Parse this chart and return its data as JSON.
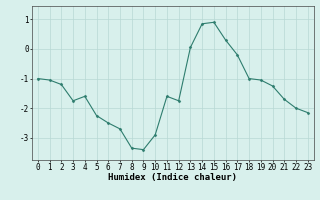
{
  "x": [
    0,
    1,
    2,
    3,
    4,
    5,
    6,
    7,
    8,
    9,
    10,
    11,
    12,
    13,
    14,
    15,
    16,
    17,
    18,
    19,
    20,
    21,
    22,
    23
  ],
  "y": [
    -1.0,
    -1.05,
    -1.2,
    -1.75,
    -1.6,
    -2.25,
    -2.5,
    -2.7,
    -3.35,
    -3.4,
    -2.9,
    -1.6,
    -1.75,
    0.05,
    0.85,
    0.9,
    0.3,
    -0.2,
    -1.0,
    -1.05,
    -1.25,
    -1.7,
    -2.0,
    -2.15
  ],
  "line_color": "#2e7d6e",
  "marker": "D",
  "marker_size": 1.5,
  "line_width": 0.8,
  "bg_color": "#d8f0ec",
  "grid_color": "#b8d8d4",
  "xlabel": "Humidex (Indice chaleur)",
  "xlabel_fontsize": 6.5,
  "tick_fontsize": 5.5,
  "ylim": [
    -3.75,
    1.45
  ],
  "xlim": [
    -0.5,
    23.5
  ],
  "yticks": [
    -3,
    -2,
    -1,
    0,
    1
  ],
  "xticks": [
    0,
    1,
    2,
    3,
    4,
    5,
    6,
    7,
    8,
    9,
    10,
    11,
    12,
    13,
    14,
    15,
    16,
    17,
    18,
    19,
    20,
    21,
    22,
    23
  ]
}
